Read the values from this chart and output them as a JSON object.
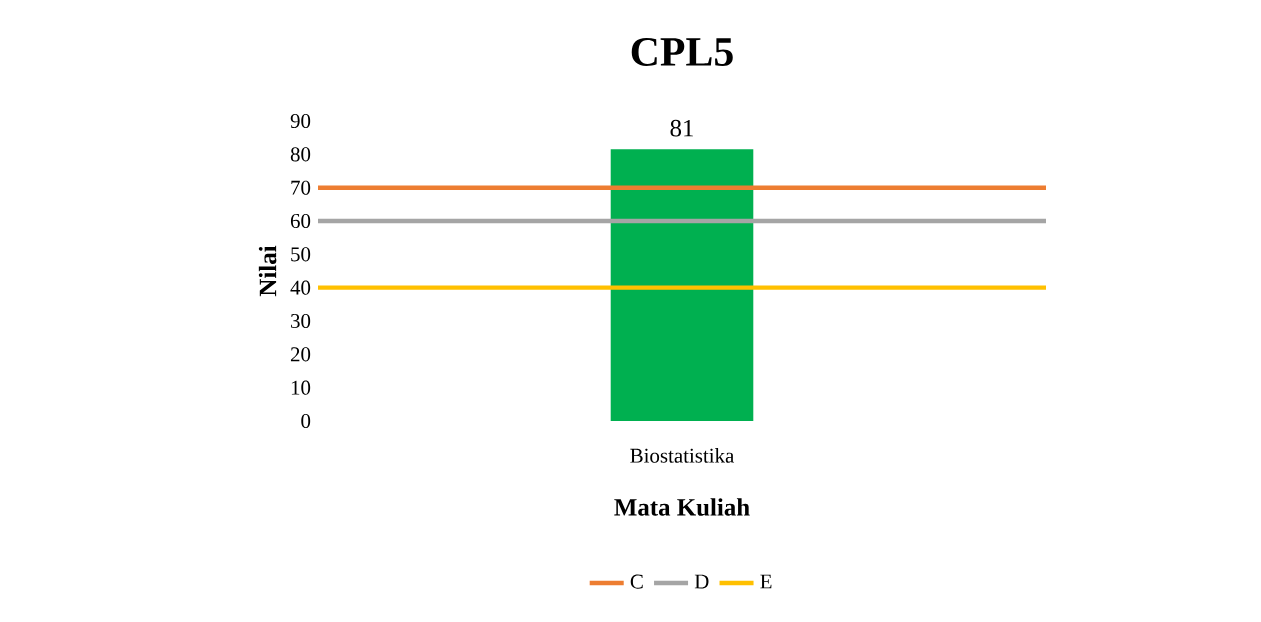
{
  "chart_data": {
    "type": "bar",
    "title": "CPL5",
    "xlabel": "Mata Kuliah",
    "ylabel": "Nilai",
    "categories": [
      "Biostatistika"
    ],
    "values": [
      81
    ],
    "color": "#00b050",
    "data_labels": true,
    "ylim": [
      0,
      90
    ],
    "yticks": [
      0,
      10,
      20,
      30,
      40,
      50,
      60,
      70,
      80,
      90
    ],
    "grid": false,
    "legend": "bottom",
    "ref_lines": [
      {
        "axis": "y",
        "value": 70,
        "label": "C",
        "color": "#ed7d31"
      },
      {
        "axis": "y",
        "value": 60,
        "label": "D",
        "color": "#a5a5a5"
      },
      {
        "axis": "y",
        "value": 40,
        "label": "E",
        "color": "#ffc000"
      }
    ]
  }
}
